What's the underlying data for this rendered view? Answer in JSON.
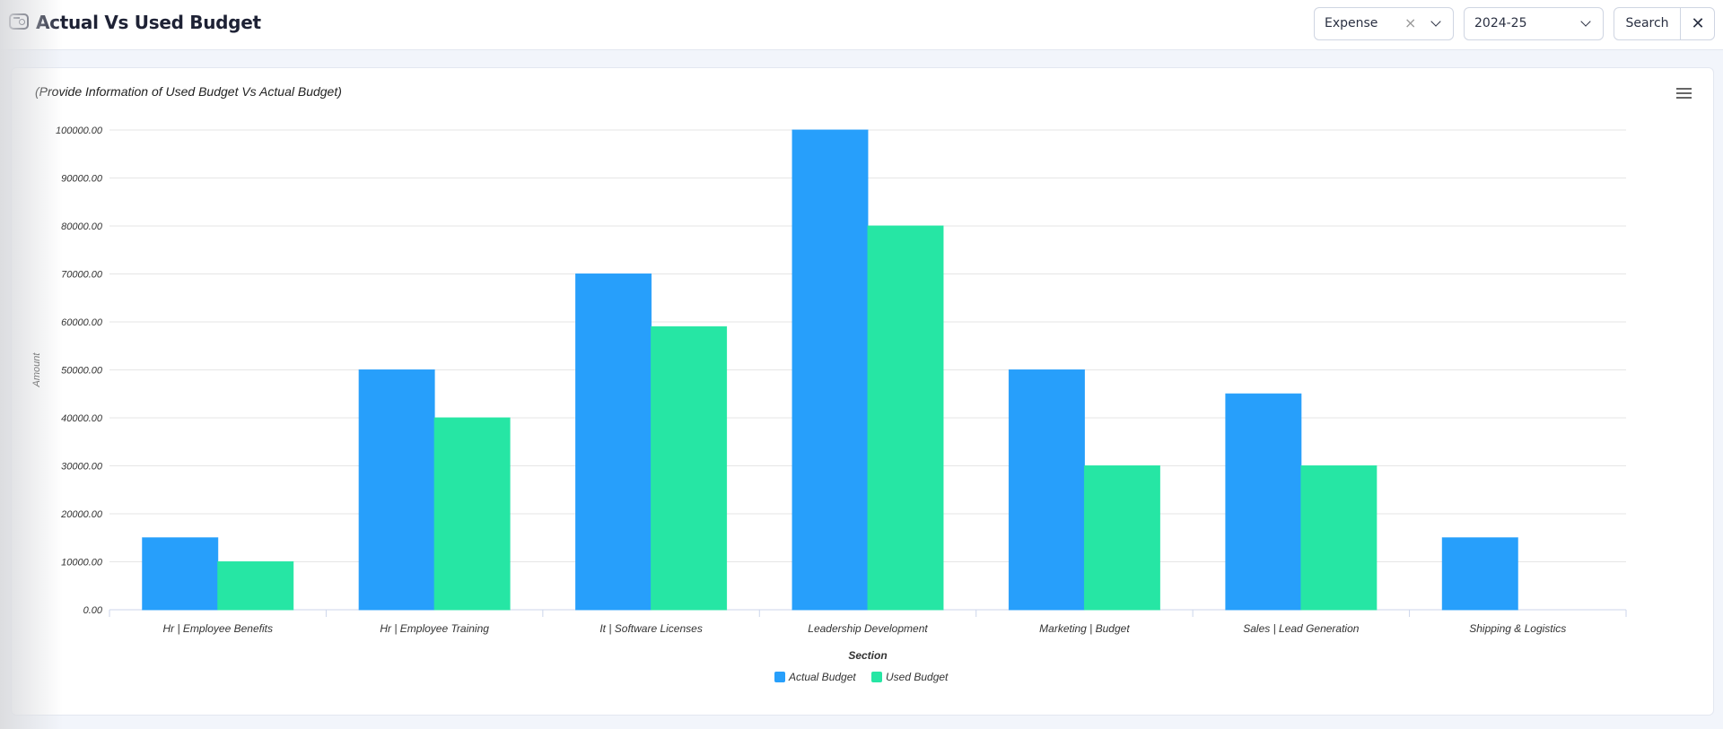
{
  "header": {
    "title": "Actual Vs Used Budget",
    "type_select": "Expense",
    "year_select": "2024-25",
    "search_label": "Search",
    "clear_label": "×",
    "close_label": "✕"
  },
  "colors": {
    "actual": "#279ffb",
    "used": "#26e6a4"
  },
  "chart_data": {
    "type": "bar",
    "title": "(Provide Information of Used Budget Vs Actual Budget)",
    "xlabel": "Section",
    "ylabel": "Amount",
    "ylim": [
      0,
      100000
    ],
    "yticks": [
      "0.00",
      "10000.00",
      "20000.00",
      "30000.00",
      "40000.00",
      "50000.00",
      "60000.00",
      "70000.00",
      "80000.00",
      "90000.00",
      "100000.00"
    ],
    "categories": [
      "Hr | Employee Benefits",
      "Hr | Employee Training",
      "It | Software Licenses",
      "Leadership Development",
      "Marketing | Budget",
      "Sales | Lead Generation",
      "Shipping & Logistics"
    ],
    "series": [
      {
        "name": "Actual Budget",
        "values": [
          15000,
          50000,
          70000,
          100000,
          50000,
          45000,
          15000
        ]
      },
      {
        "name": "Used Budget",
        "values": [
          10000,
          40000,
          59000,
          80000,
          30000,
          30000,
          0
        ]
      }
    ],
    "legend": "bottom-center",
    "grid": true
  }
}
